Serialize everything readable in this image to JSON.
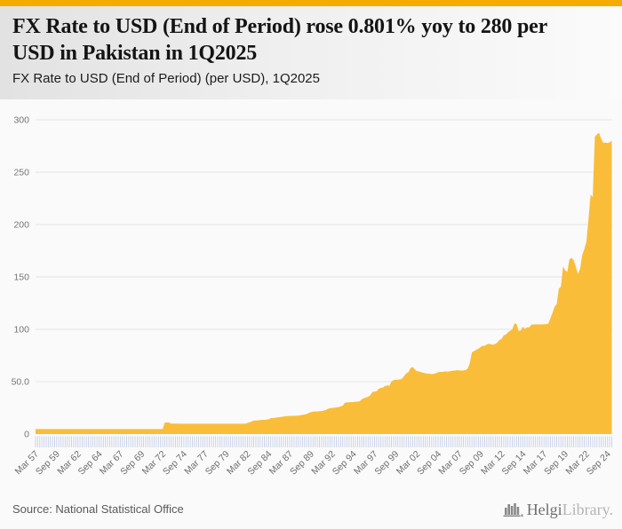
{
  "accent": {
    "topbar_color": "#f5ab00"
  },
  "header": {
    "headline": "FX Rate to USD (End of Period) rose 0.801% yoy to 280 per USD in Pakistan in 1Q2025",
    "subtitle": "FX Rate to USD (End of Period) (per USD), 1Q2025"
  },
  "footer": {
    "source": "Source: National Statistical Office",
    "logo": {
      "part1": "Helgi",
      "part2": "Library."
    }
  },
  "chart_data": {
    "type": "area",
    "title": "FX Rate to USD (End of Period) (per USD), 1Q2025",
    "country": "Pakistan",
    "unit": "per USD",
    "frequency": "quarterly",
    "start_period": "1957Q1",
    "end_period": "2025Q1",
    "ylim": [
      0,
      300
    ],
    "grid": "horizontal",
    "legend": "none",
    "area_color": "#f9bd3a",
    "grid_color": "#e4e4e4",
    "tick_color": "#c7d0e8",
    "axis_label_color": "#757575",
    "y_ticks": {
      "values": [
        0,
        50,
        100,
        150,
        200,
        250,
        300
      ],
      "labels": [
        "0",
        "50.0",
        "100",
        "150",
        "200",
        "250",
        "300"
      ]
    },
    "x_tick_every": 10,
    "x_tick_labels": [
      "Mar 57",
      "Sep 59",
      "Mar 62",
      "Sep 64",
      "Mar 67",
      "Sep 69",
      "Mar 72",
      "Sep 74",
      "Mar 77",
      "Sep 79",
      "Mar 82",
      "Sep 84",
      "Mar 87",
      "Sep 89",
      "Mar 92",
      "Sep 94",
      "Mar 97",
      "Sep 99",
      "Mar 02",
      "Sep 04",
      "Mar 07",
      "Sep 09",
      "Mar 12",
      "Sep 14",
      "Mar 17",
      "Sep 19",
      "Mar 22",
      "Sep 24"
    ],
    "latest_value": 280,
    "yoy_change_pct": 0.801,
    "values": [
      4.76,
      4.76,
      4.76,
      4.76,
      4.76,
      4.76,
      4.76,
      4.76,
      4.76,
      4.76,
      4.76,
      4.76,
      4.76,
      4.76,
      4.76,
      4.76,
      4.76,
      4.76,
      4.76,
      4.76,
      4.76,
      4.76,
      4.76,
      4.76,
      4.76,
      4.76,
      4.76,
      4.76,
      4.76,
      4.76,
      4.76,
      4.76,
      4.76,
      4.76,
      4.76,
      4.76,
      4.76,
      4.76,
      4.76,
      4.76,
      4.76,
      4.76,
      4.76,
      4.76,
      4.76,
      4.76,
      4.76,
      4.76,
      4.76,
      4.76,
      4.76,
      4.76,
      4.76,
      4.76,
      4.76,
      4.76,
      4.76,
      4.76,
      4.76,
      4.76,
      4.76,
      11.01,
      11.01,
      11.01,
      9.99,
      9.99,
      9.99,
      9.99,
      9.9,
      9.9,
      9.9,
      9.9,
      9.9,
      9.9,
      9.9,
      9.9,
      9.9,
      9.9,
      9.9,
      9.9,
      9.9,
      9.9,
      9.9,
      9.9,
      9.9,
      9.9,
      9.9,
      9.9,
      9.9,
      9.9,
      9.9,
      9.9,
      9.9,
      9.9,
      9.9,
      9.9,
      9.9,
      9.9,
      9.9,
      9.9,
      10.55,
      11.15,
      12.0,
      12.84,
      12.9,
      13.0,
      13.3,
      13.5,
      13.6,
      13.8,
      14.0,
      15.1,
      15.2,
      15.5,
      15.9,
      16.1,
      16.4,
      16.6,
      16.9,
      17.25,
      17.3,
      17.35,
      17.4,
      17.45,
      17.6,
      17.9,
      18.3,
      18.65,
      19.2,
      20.1,
      20.9,
      21.42,
      21.5,
      21.6,
      21.75,
      21.9,
      22.4,
      23.0,
      24.0,
      24.72,
      24.9,
      25.1,
      25.4,
      25.7,
      26.4,
      27.1,
      29.85,
      30.16,
      30.25,
      30.4,
      30.55,
      30.8,
      30.95,
      31.2,
      33.3,
      34.25,
      35.0,
      35.6,
      37.0,
      40.12,
      40.5,
      40.9,
      43.2,
      44.05,
      44.3,
      46.0,
      46.4,
      46.0,
      50.1,
      51.5,
      51.9,
      51.9,
      52.1,
      53.0,
      55.5,
      58.0,
      59.0,
      63.0,
      64.1,
      61.9,
      60.1,
      59.7,
      59.0,
      58.5,
      58.0,
      57.75,
      57.5,
      57.25,
      57.5,
      58.1,
      59.0,
      59.4,
      59.35,
      59.7,
      59.75,
      59.8,
      60.2,
      60.45,
      60.7,
      60.9,
      60.75,
      60.6,
      60.7,
      61.2,
      62.55,
      68.0,
      78.1,
      79.1,
      80.4,
      81.4,
      83.1,
      84.2,
      84.3,
      85.5,
      86.2,
      85.7,
      85.2,
      86.0,
      87.4,
      89.9,
      90.8,
      94.3,
      94.9,
      97.1,
      98.6,
      99.65,
      105.4,
      105.3,
      98.6,
      98.75,
      102.5,
      100.4,
      101.9,
      101.8,
      104.3,
      104.7,
      104.7,
      104.8,
      104.6,
      104.8,
      104.8,
      104.9,
      105.3,
      110.4,
      115.6,
      121.5,
      124.2,
      138.9,
      140.9,
      160.05,
      156.4,
      154.9,
      166.7,
      168.2,
      166.0,
      160.0,
      152.8,
      157.5,
      170.5,
      176.5,
      183.5,
      204.85,
      228.45,
      226.4,
      283.8,
      286.0,
      287.7,
      281.9,
      277.9,
      278.4,
      277.7,
      278.5,
      280.2
    ]
  }
}
